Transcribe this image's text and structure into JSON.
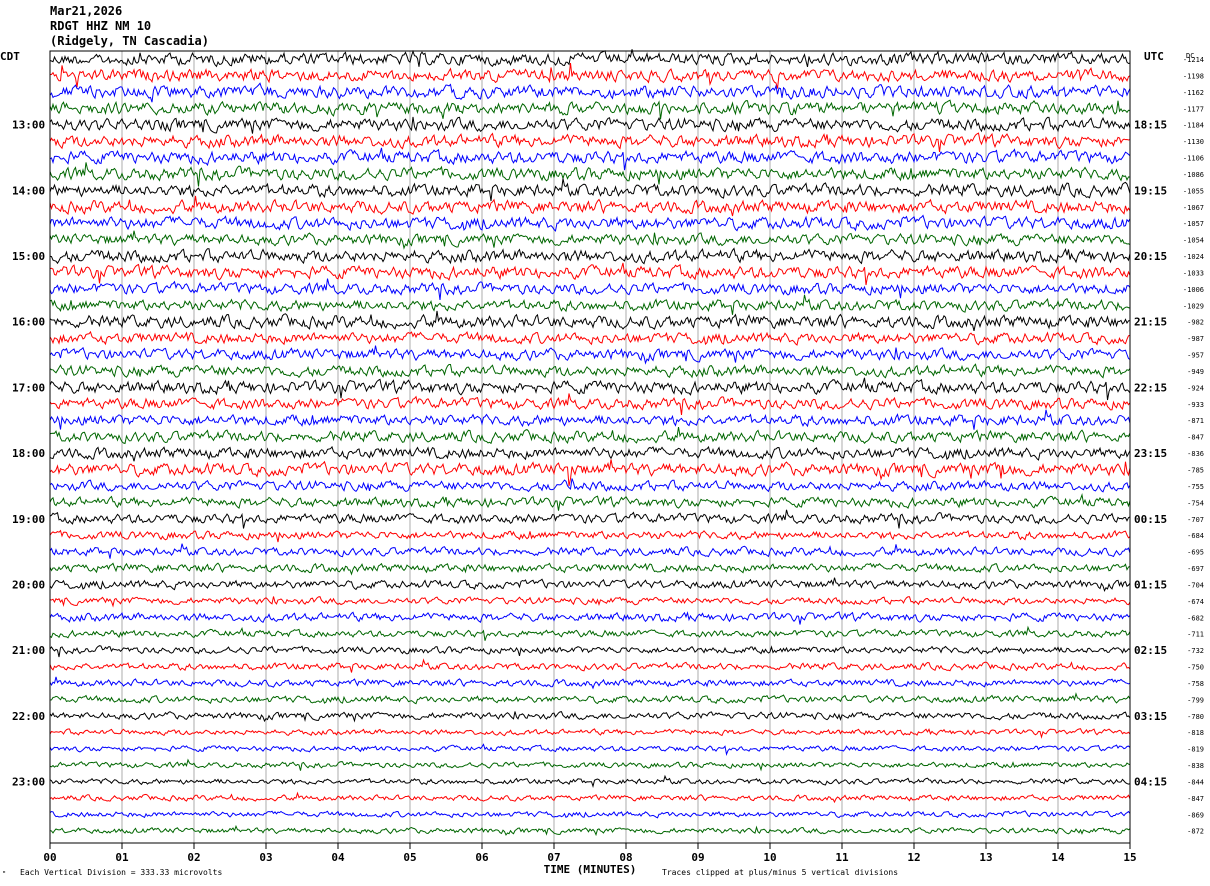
{
  "header": {
    "date": "Mar21,2026",
    "station": "RDGT HHZ NM 10",
    "location": "(Ridgely, TN Cascadia)"
  },
  "left_zone": "CDT",
  "right_zone": "UTC",
  "dc_label": "DC",
  "footer": {
    "corner_mark": "\"",
    "division": "Each Vertical Division =  333.33 microvolts",
    "clip": "Traces clipped at plus/minus 5 vertical divisions"
  },
  "chart_data": {
    "type": "line",
    "title": "RDGT HHZ NM 10",
    "xlabel": "TIME (MINUTES)",
    "ylabel": "",
    "xlim": [
      0,
      15
    ],
    "x_ticks": [
      "00",
      "01",
      "02",
      "03",
      "04",
      "05",
      "06",
      "07",
      "08",
      "09",
      "10",
      "11",
      "12",
      "13",
      "14",
      "15"
    ],
    "left_hour_labels": [
      "13:00",
      "14:00",
      "15:00",
      "16:00",
      "17:00",
      "18:00",
      "19:00",
      "20:00",
      "21:00",
      "22:00",
      "23:00"
    ],
    "right_hour_labels": [
      "18:15",
      "19:15",
      "20:15",
      "21:15",
      "22:15",
      "23:15",
      "00:15",
      "01:15",
      "02:15",
      "03:15",
      "04:15"
    ],
    "trace_colors": [
      "#000000",
      "#ff0000",
      "#0000ff",
      "#006600"
    ],
    "dc_offsets": [
      -1214,
      -1198,
      -1162,
      -1177,
      -1184,
      -1130,
      -1106,
      -1086,
      -1055,
      -1067,
      -1057,
      -1054,
      -1024,
      -1033,
      -1006,
      -1029,
      -982,
      -987,
      -957,
      -949,
      -924,
      -933,
      -871,
      -847,
      -836,
      -785,
      -755,
      -754,
      -707,
      -684,
      -695,
      -697,
      -704,
      -674,
      -682,
      -711,
      -732,
      -750,
      -758,
      -799,
      -780,
      -818,
      -819,
      -838,
      -844,
      -847,
      -869,
      -872
    ],
    "trace_amplitude": [
      9,
      9,
      9,
      9,
      9,
      9,
      9,
      9,
      9,
      9,
      9,
      8,
      9,
      9,
      8,
      8,
      9,
      8,
      8,
      8,
      9,
      8,
      8,
      8,
      8,
      9,
      7,
      7,
      7,
      6,
      6,
      6,
      6,
      5,
      6,
      5,
      5,
      5,
      5,
      5,
      5,
      4,
      4,
      4,
      4,
      4,
      4,
      4
    ],
    "events": [
      {
        "trace": 25,
        "minute": 7.2,
        "amplitude": 22
      },
      {
        "trace": 26,
        "minute": 7.2,
        "amplitude": 14
      },
      {
        "trace": 25,
        "minute": 13.2,
        "amplitude": 12
      },
      {
        "trace": 26,
        "minute": 13.3,
        "amplitude": 10
      }
    ],
    "grid": "vertical"
  }
}
